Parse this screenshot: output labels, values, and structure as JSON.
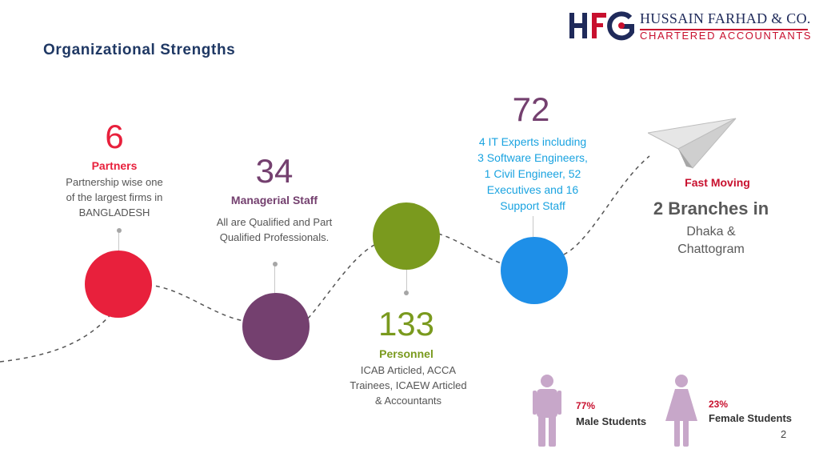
{
  "slide": {
    "title": "Organizational Strengths",
    "page_number": "2"
  },
  "logo": {
    "mark": "HFG",
    "name": "HUSSAIN FARHAD & CO.",
    "subtitle": "CHARTERED ACCOUNTANTS",
    "colors": {
      "navy": "#1f2a5a",
      "red": "#c8102e"
    }
  },
  "stats": [
    {
      "number": "6",
      "label": "Partners",
      "description": [
        "Partnership wise one",
        "of the largest firms in",
        "BANGLADESH"
      ],
      "color": "#e8203c"
    },
    {
      "number": "34",
      "label": "Managerial Staff",
      "description": [
        "All are Qualified and Part",
        "Qualified Professionals."
      ],
      "color": "#74406f"
    },
    {
      "number": "133",
      "label": "Personnel",
      "description": [
        "ICAB Articled, ACCA",
        "Trainees, ICAEW Articled",
        "& Accountants"
      ],
      "color": "#7a9a1e"
    },
    {
      "number": "72",
      "label": "",
      "description": [
        "4 IT Experts including",
        "3 Software Engineers,",
        "1 Civil Engineer, 52",
        "Executives and 16",
        "Support Staff"
      ],
      "color": "#1e8fe8"
    }
  ],
  "branches": {
    "tag": "Fast Moving",
    "headline": "2 Branches in",
    "cities": [
      "Dhaka &",
      "Chattogram"
    ],
    "icon": "paper-plane-icon"
  },
  "students": {
    "male": {
      "percent": "77%",
      "label": "Male Students",
      "icon": "male-person-icon"
    },
    "female": {
      "percent": "23%",
      "label": "Female Students",
      "icon": "female-person-icon"
    },
    "icon_color": "#c7a7c9"
  }
}
